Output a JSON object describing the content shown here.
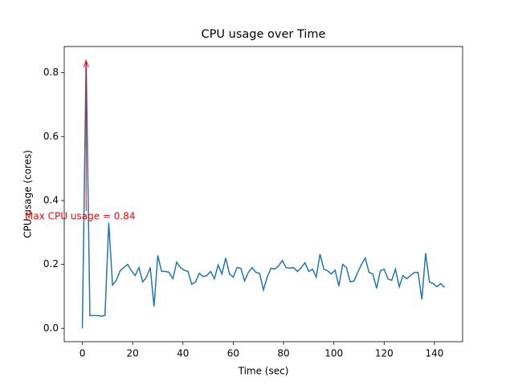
{
  "chart_data": {
    "type": "line",
    "title": "CPU usage over Time",
    "xlabel": "Time (sec)",
    "ylabel": "CPU usage (cores)",
    "annotation": "Max CPU usage = 0.84",
    "annotation_color": "#ff0000",
    "color": "#1f77b4",
    "x": [
      0,
      1.5,
      3,
      4.5,
      6,
      7.5,
      9,
      10.5,
      12,
      13.5,
      15,
      16.5,
      18,
      19.5,
      21,
      22.5,
      24,
      25.5,
      27,
      28.5,
      30,
      31.5,
      33,
      34.5,
      36,
      37.5,
      39,
      40.5,
      42,
      43.5,
      45,
      46.5,
      48,
      49.5,
      51,
      52.5,
      54,
      55.5,
      57,
      58.5,
      60,
      61.5,
      63,
      64.5,
      66,
      67.5,
      69,
      70.5,
      72,
      73.5,
      75,
      76.5,
      78,
      79.5,
      81,
      82.5,
      84,
      85.5,
      87,
      88.5,
      90,
      91.5,
      93,
      94.5,
      96,
      97.5,
      99,
      100.5,
      102,
      103.5,
      105,
      106.5,
      108,
      109.5,
      111,
      112.5,
      114,
      115.5,
      117,
      118.5,
      120,
      121.5,
      123,
      124.5,
      126,
      127.5,
      129,
      130.5,
      132,
      133.5,
      135,
      136.5,
      138,
      139.5,
      141,
      142.5,
      144
    ],
    "values": [
      0,
      0.84,
      0.04,
      0.04,
      0.04,
      0.038,
      0.04,
      0.33,
      0.135,
      0.15,
      0.18,
      0.19,
      0.2,
      0.18,
      0.165,
      0.19,
      0.145,
      0.16,
      0.19,
      0.068,
      0.228,
      0.178,
      0.178,
      0.175,
      0.155,
      0.207,
      0.19,
      0.182,
      0.178,
      0.138,
      0.145,
      0.172,
      0.162,
      0.165,
      0.178,
      0.155,
      0.198,
      0.17,
      0.22,
      0.17,
      0.16,
      0.19,
      0.188,
      0.148,
      0.175,
      0.19,
      0.175,
      0.172,
      0.12,
      0.16,
      0.188,
      0.185,
      0.195,
      0.212,
      0.19,
      0.188,
      0.19,
      0.178,
      0.19,
      0.205,
      0.178,
      0.185,
      0.16,
      0.232,
      0.185,
      0.18,
      0.17,
      0.182,
      0.132,
      0.2,
      0.19,
      0.145,
      0.148,
      0.175,
      0.2,
      0.22,
      0.175,
      0.17,
      0.125,
      0.18,
      0.185,
      0.155,
      0.15,
      0.185,
      0.13,
      0.165,
      0.155,
      0.165,
      0.175,
      0.175,
      0.09,
      0.235,
      0.145,
      0.14,
      0.13,
      0.14,
      0.128
    ],
    "xlim": [
      -7.2,
      151.2
    ],
    "ylim": [
      -0.042,
      0.882
    ],
    "xticks": [
      0,
      20,
      40,
      60,
      80,
      100,
      120,
      140
    ],
    "yticks": [
      {
        "value": 0,
        "label": "0.0"
      },
      0.2,
      0.4,
      0.6,
      0.8
    ]
  }
}
